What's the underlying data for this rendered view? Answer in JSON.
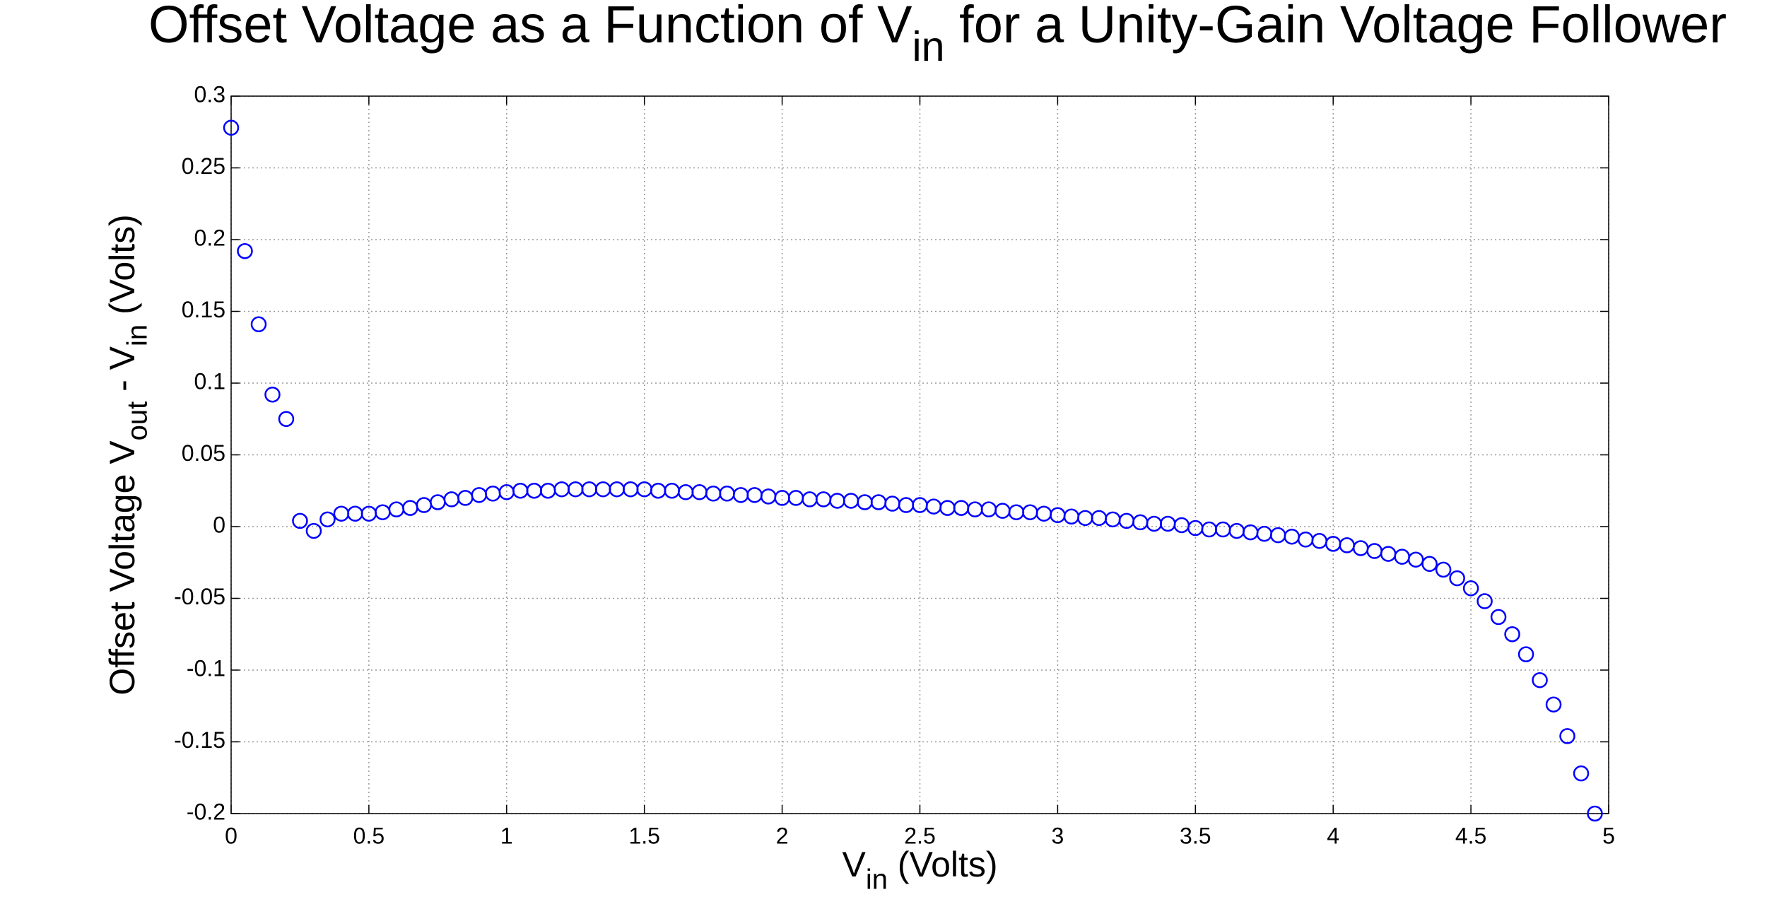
{
  "chart_data": {
    "type": "scatter",
    "title": [
      "Offset Voltage as a Function of V",
      "in",
      " for a Unity-Gain Voltage Follower"
    ],
    "xlabel": [
      "V",
      "in",
      " (Volts)"
    ],
    "ylabel": [
      "Offset Voltage V",
      "out",
      " - V",
      "in",
      " (Volts)"
    ],
    "series": [
      {
        "color": "#0000ff",
        "x": [
          0,
          0.05,
          0.1,
          0.15,
          0.2,
          0.25,
          0.3,
          0.35,
          0.4,
          0.45,
          0.5,
          0.55,
          0.6,
          0.65,
          0.7,
          0.75,
          0.8,
          0.85,
          0.9,
          0.95,
          1.0,
          1.05,
          1.1,
          1.15,
          1.2,
          1.25,
          1.3,
          1.35,
          1.4,
          1.45,
          1.5,
          1.55,
          1.6,
          1.65,
          1.7,
          1.75,
          1.8,
          1.85,
          1.9,
          1.95,
          2.0,
          2.05,
          2.1,
          2.15,
          2.2,
          2.25,
          2.3,
          2.35,
          2.4,
          2.45,
          2.5,
          2.55,
          2.6,
          2.65,
          2.7,
          2.75,
          2.8,
          2.85,
          2.9,
          2.95,
          3.0,
          3.05,
          3.1,
          3.15,
          3.2,
          3.25,
          3.3,
          3.35,
          3.4,
          3.45,
          3.5,
          3.55,
          3.6,
          3.65,
          3.7,
          3.75,
          3.8,
          3.85,
          3.9,
          3.95,
          4.0,
          4.05,
          4.1,
          4.15,
          4.2,
          4.25,
          4.3,
          4.35,
          4.4,
          4.45,
          4.5,
          4.55,
          4.6,
          4.65,
          4.7,
          4.75,
          4.8,
          4.85,
          4.9,
          4.95
        ],
        "values": [
          0.278,
          0.192,
          0.141,
          0.092,
          0.075,
          0.004,
          -0.003,
          0.005,
          0.009,
          0.009,
          0.009,
          0.01,
          0.012,
          0.013,
          0.015,
          0.017,
          0.019,
          0.02,
          0.022,
          0.023,
          0.024,
          0.025,
          0.025,
          0.025,
          0.026,
          0.026,
          0.026,
          0.026,
          0.026,
          0.026,
          0.026,
          0.025,
          0.025,
          0.024,
          0.024,
          0.023,
          0.023,
          0.022,
          0.022,
          0.021,
          0.02,
          0.02,
          0.019,
          0.019,
          0.018,
          0.018,
          0.017,
          0.017,
          0.016,
          0.015,
          0.015,
          0.014,
          0.013,
          0.013,
          0.012,
          0.012,
          0.011,
          0.01,
          0.01,
          0.009,
          0.008,
          0.007,
          0.006,
          0.006,
          0.005,
          0.004,
          0.003,
          0.002,
          0.002,
          0.001,
          -0.001,
          -0.002,
          -0.002,
          -0.003,
          -0.004,
          -0.005,
          -0.006,
          -0.007,
          -0.009,
          -0.01,
          -0.012,
          -0.013,
          -0.015,
          -0.017,
          -0.019,
          -0.021,
          -0.023,
          -0.026,
          -0.03,
          -0.036,
          -0.043,
          -0.052,
          -0.063,
          -0.075,
          -0.089,
          -0.107,
          -0.124,
          -0.146,
          -0.172,
          -0.2
        ]
      }
    ],
    "xlim": [
      0,
      5
    ],
    "xticks": [
      0,
      0.5,
      1,
      1.5,
      2,
      2.5,
      3,
      3.5,
      4,
      4.5,
      5
    ],
    "ylim": [
      -0.2,
      0.3
    ],
    "yticks": [
      -0.2,
      -0.15,
      -0.1,
      -0.05,
      0,
      0.05,
      0.1,
      0.15,
      0.2,
      0.25,
      0.3
    ],
    "grid": true
  }
}
